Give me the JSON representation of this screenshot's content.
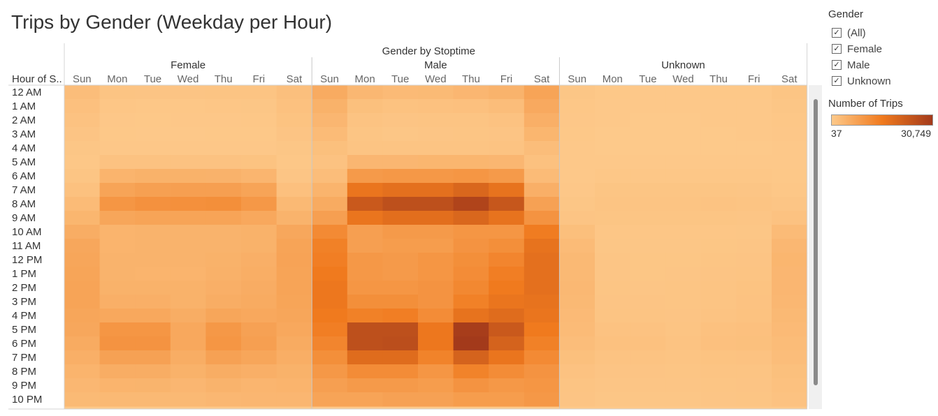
{
  "title": "Trips by Gender (Weekday per Hour)",
  "gender_filter": {
    "title": "Gender",
    "options": [
      {
        "label": "(All)",
        "checked": true
      },
      {
        "label": "Female",
        "checked": true
      },
      {
        "label": "Male",
        "checked": true
      },
      {
        "label": "Unknown",
        "checked": true
      }
    ]
  },
  "color_legend": {
    "title": "Number of Trips",
    "min_label": "37",
    "max_label": "30,749",
    "min_color": "#fdc98a",
    "mid_color": "#f07a1e",
    "max_color": "#a33a1b"
  },
  "chart_data": {
    "type": "heatmap",
    "title": "Trips by Gender (Weekday per Hour)",
    "column_header": "Gender by Stoptime",
    "row_header": "Hour of S..",
    "groups": [
      "Female",
      "Male",
      "Unknown"
    ],
    "days": [
      "Sun",
      "Mon",
      "Tue",
      "Wed",
      "Thu",
      "Fri",
      "Sat"
    ],
    "hours": [
      "12 AM",
      "1 AM",
      "2 AM",
      "3 AM",
      "4 AM",
      "5 AM",
      "6 AM",
      "7 AM",
      "8 AM",
      "9 AM",
      "10 AM",
      "11 AM",
      "12 PM",
      "1 PM",
      "2 PM",
      "3 PM",
      "4 PM",
      "5 PM",
      "6 PM",
      "7 PM",
      "8 PM",
      "9 PM",
      "10 PM"
    ],
    "color_range": [
      37,
      30749
    ],
    "series": [
      {
        "name": "Female",
        "values": [
          [
            2500,
            1100,
            1000,
            1000,
            1100,
            1200,
            2100
          ],
          [
            1900,
            600,
            500,
            550,
            600,
            700,
            1700
          ],
          [
            1500,
            400,
            350,
            380,
            400,
            450,
            1400
          ],
          [
            1000,
            300,
            250,
            270,
            280,
            320,
            1000
          ],
          [
            700,
            400,
            380,
            380,
            390,
            420,
            700
          ],
          [
            500,
            1500,
            1500,
            1500,
            1500,
            1400,
            500
          ],
          [
            900,
            4500,
            5000,
            5000,
            4900,
            4300,
            800
          ],
          [
            1800,
            8000,
            8800,
            9000,
            9000,
            8000,
            1900
          ],
          [
            3000,
            11000,
            12000,
            12200,
            12500,
            10500,
            3500
          ],
          [
            4200,
            7500,
            8000,
            8000,
            8000,
            7000,
            4800
          ],
          [
            6000,
            4500,
            4800,
            4800,
            4800,
            5000,
            7200
          ],
          [
            7200,
            4500,
            4700,
            4700,
            4800,
            5000,
            8000
          ],
          [
            7500,
            4800,
            4700,
            4800,
            5000,
            5500,
            8200
          ],
          [
            7800,
            4800,
            4500,
            4500,
            5200,
            5800,
            8000
          ],
          [
            8000,
            5000,
            5000,
            5000,
            5500,
            6200,
            8000
          ],
          [
            8000,
            5500,
            5500,
            5000,
            6000,
            6500,
            7800
          ],
          [
            7500,
            7000,
            7000,
            6000,
            7500,
            7000,
            7500
          ],
          [
            7200,
            11000,
            11000,
            7000,
            10500,
            8500,
            7000
          ],
          [
            6500,
            11500,
            11500,
            7000,
            11000,
            9000,
            6500
          ],
          [
            5500,
            8500,
            8500,
            6000,
            8500,
            7500,
            5800
          ],
          [
            4500,
            6000,
            6000,
            5000,
            6000,
            5500,
            5000
          ],
          [
            3800,
            4500,
            4600,
            4000,
            4700,
            4300,
            4500
          ],
          [
            3300,
            3500,
            3500,
            3500,
            3800,
            4000,
            4000
          ]
        ]
      },
      {
        "name": "Male",
        "values": [
          [
            6500,
            3800,
            3200,
            3300,
            4000,
            4800,
            8000
          ],
          [
            5000,
            2000,
            1600,
            1700,
            1900,
            2500,
            6800
          ],
          [
            4000,
            1300,
            1000,
            1100,
            1200,
            1500,
            5500
          ],
          [
            3000,
            900,
            700,
            800,
            900,
            1000,
            4200
          ],
          [
            2000,
            1200,
            1100,
            1200,
            1200,
            1300,
            2500
          ],
          [
            1500,
            4000,
            4000,
            4200,
            4200,
            4000,
            1800
          ],
          [
            2500,
            10000,
            10500,
            10500,
            11000,
            10000,
            3000
          ],
          [
            4500,
            18000,
            19000,
            19000,
            21000,
            18500,
            5500
          ],
          [
            6500,
            24000,
            26000,
            26000,
            28500,
            24500,
            8500
          ],
          [
            9000,
            18000,
            19500,
            19500,
            21000,
            18500,
            11500
          ],
          [
            13500,
            9000,
            10000,
            10000,
            11000,
            11000,
            16500
          ],
          [
            15500,
            9000,
            9500,
            9500,
            11500,
            12500,
            18500
          ],
          [
            16000,
            10500,
            10000,
            11000,
            12500,
            14500,
            19000
          ],
          [
            17000,
            10500,
            10000,
            11000,
            13000,
            16000,
            19000
          ],
          [
            17500,
            11000,
            11000,
            11500,
            14000,
            17000,
            19000
          ],
          [
            17500,
            12500,
            12500,
            11500,
            15500,
            18000,
            18500
          ],
          [
            17000,
            15500,
            16000,
            13000,
            18500,
            20000,
            18000
          ],
          [
            16000,
            26000,
            26000,
            17500,
            30000,
            24000,
            17000
          ],
          [
            14500,
            26000,
            26500,
            17500,
            30749,
            22000,
            15500
          ],
          [
            12500,
            20000,
            20000,
            15000,
            22000,
            18000,
            13500
          ],
          [
            10500,
            13000,
            13000,
            11000,
            15000,
            13000,
            11500
          ],
          [
            9000,
            10000,
            10000,
            9500,
            11500,
            10500,
            11000
          ],
          [
            8000,
            8000,
            8500,
            8500,
            9500,
            9500,
            10500
          ]
        ]
      },
      {
        "name": "Unknown",
        "values": [
          [
            700,
            300,
            250,
            250,
            300,
            350,
            900
          ],
          [
            500,
            200,
            150,
            150,
            200,
            250,
            700
          ],
          [
            400,
            150,
            100,
            100,
            150,
            200,
            550
          ],
          [
            300,
            100,
            80,
            80,
            100,
            150,
            400
          ],
          [
            200,
            100,
            80,
            80,
            100,
            100,
            250
          ],
          [
            150,
            200,
            200,
            200,
            200,
            200,
            150
          ],
          [
            250,
            500,
            500,
            500,
            500,
            450,
            300
          ],
          [
            400,
            900,
            900,
            900,
            900,
            800,
            500
          ],
          [
            700,
            1200,
            1200,
            1200,
            1300,
            1100,
            800
          ],
          [
            1000,
            900,
            900,
            900,
            900,
            850,
            1500
          ],
          [
            2200,
            600,
            600,
            600,
            650,
            700,
            3000
          ],
          [
            3000,
            700,
            700,
            700,
            750,
            800,
            3800
          ],
          [
            3500,
            800,
            750,
            750,
            900,
            1000,
            4200
          ],
          [
            3500,
            800,
            750,
            800,
            1000,
            1200,
            4000
          ],
          [
            3600,
            900,
            850,
            900,
            1100,
            1400,
            4000
          ],
          [
            3500,
            1000,
            1000,
            900,
            1200,
            1500,
            3800
          ],
          [
            3200,
            1100,
            1100,
            1000,
            1300,
            1600,
            3500
          ],
          [
            3000,
            1500,
            1500,
            1200,
            1700,
            1900,
            3200
          ],
          [
            2500,
            1700,
            1700,
            1300,
            1900,
            2000,
            2800
          ],
          [
            2000,
            1300,
            1300,
            1100,
            1400,
            1500,
            2500
          ],
          [
            1500,
            1000,
            1000,
            900,
            1100,
            1200,
            2000
          ],
          [
            1200,
            800,
            800,
            800,
            900,
            1000,
            1800
          ],
          [
            1000,
            700,
            700,
            700,
            800,
            900,
            1500
          ]
        ]
      }
    ]
  }
}
